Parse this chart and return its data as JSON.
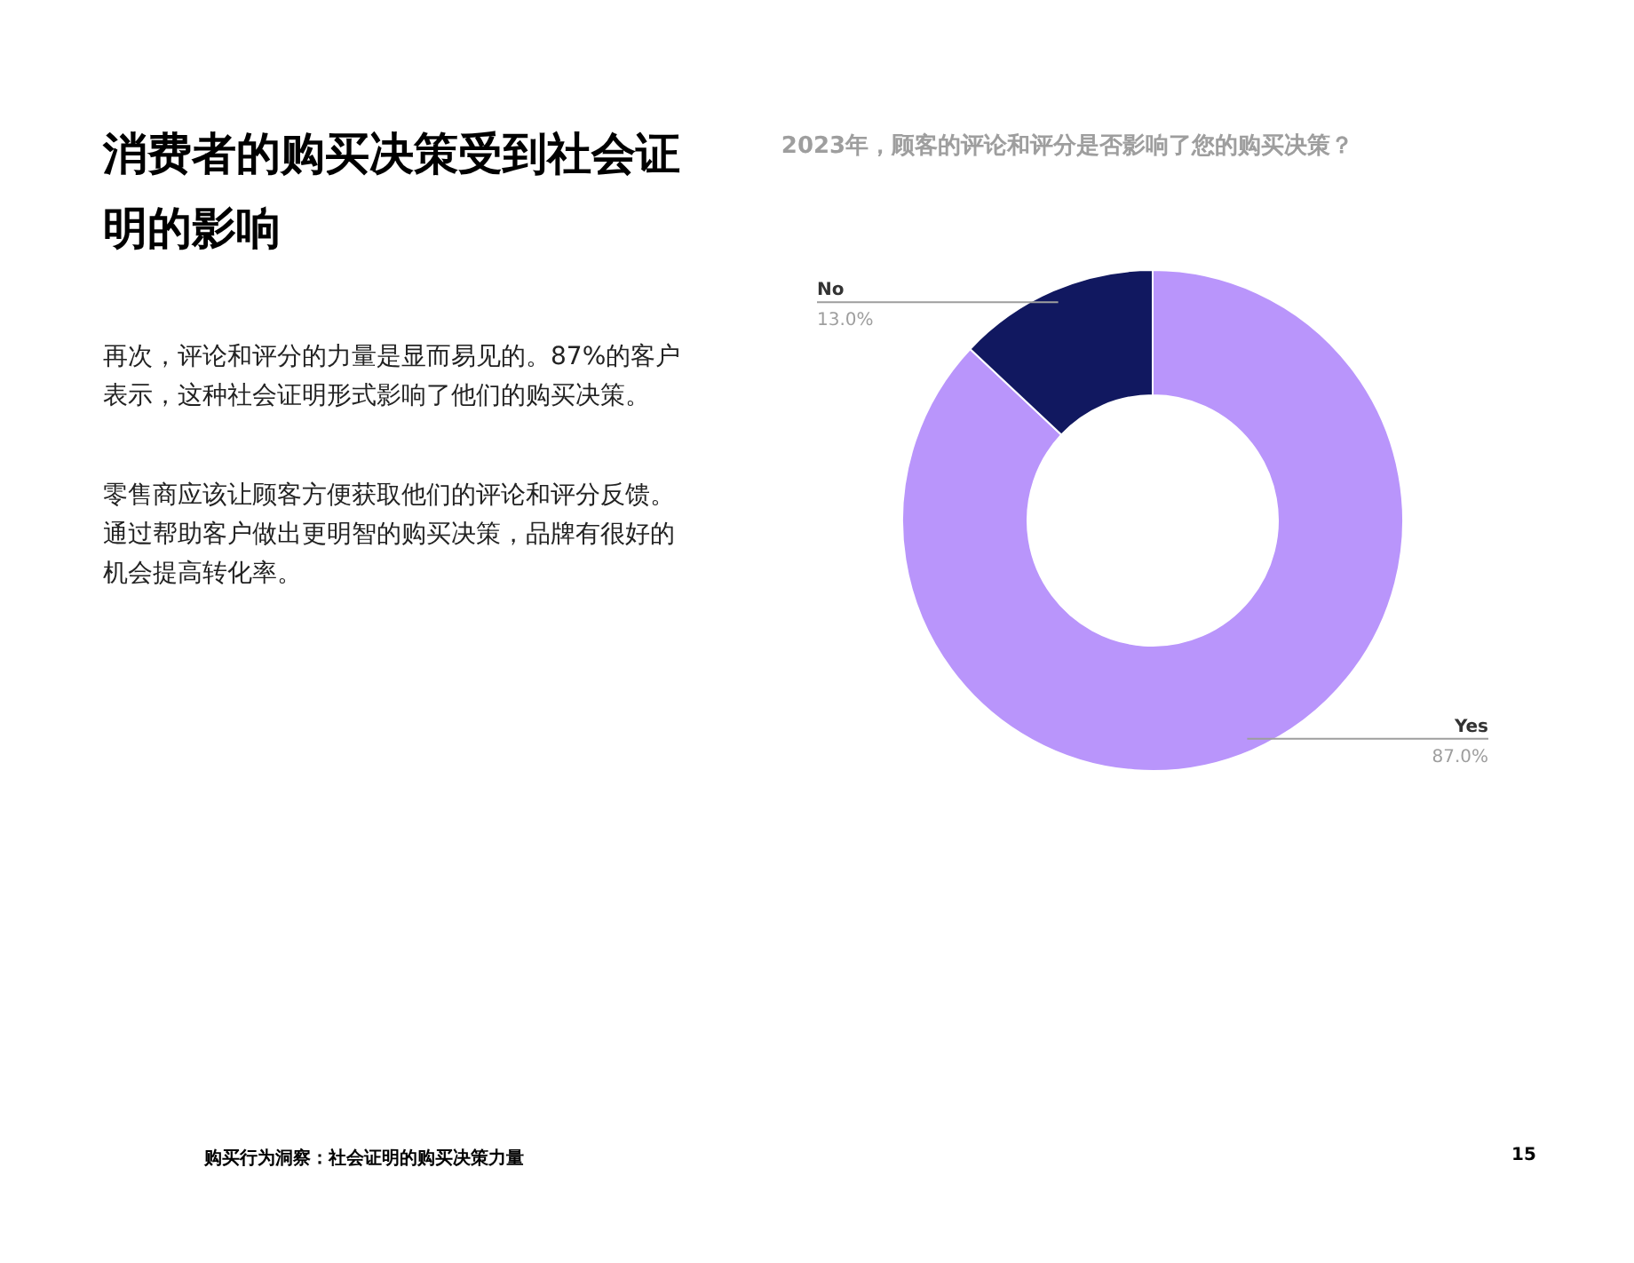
{
  "chart_data": {
    "type": "donut",
    "title": "2023年，顾客的评论和评分是否影响了您的购买决策？",
    "categories": [
      "Yes",
      "No"
    ],
    "values": [
      87,
      13
    ],
    "colors": [
      "#b995fb",
      "#111860"
    ],
    "value_labels": [
      "87.0%",
      "13.0%"
    ],
    "annotations": [
      "消费者的购买决策受到社会证明的影响",
      "再次，评论和评分的力量是显而易见的。87%的客户表示，这种社会证明形式影响了他们的购买决策。",
      "零售商应该让顾客方便获取他们的评论和评分反馈。通过帮助客户做出更明智的购买决策，品牌有很好的机会提高转化率。",
      "购买行为洞察：社会证明的购买决策力量",
      "15"
    ]
  }
}
